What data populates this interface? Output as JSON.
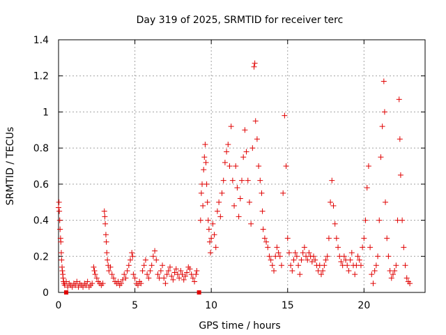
{
  "chart_data": {
    "type": "scatter",
    "title": "Day 319 of 2025, SRMTID for receiver terc",
    "xlabel": "GPS time / hours",
    "ylabel": "SRMTID / TECUs",
    "xlim": [
      0,
      24
    ],
    "ylim": [
      0,
      1.4
    ],
    "x_ticks": [
      0,
      5,
      10,
      15,
      20
    ],
    "x_tick_labels": [
      "0",
      "5",
      "10",
      "15",
      "20"
    ],
    "y_ticks": [
      0,
      0.2,
      0.4,
      0.6,
      0.8,
      1.0,
      1.2,
      1.4
    ],
    "y_tick_labels": [
      "0",
      "0.2",
      "0.4",
      "0.6",
      "0.8",
      "1",
      "1.2",
      "1.4"
    ],
    "grid": true,
    "marker": "plus",
    "color": "#e00000",
    "outage_markers_x": [
      0.5,
      9.2
    ],
    "series": [
      {
        "name": "SRMTID",
        "points": [
          [
            0.0,
            0.47
          ],
          [
            0.03,
            0.5
          ],
          [
            0.05,
            0.45
          ],
          [
            0.08,
            0.4
          ],
          [
            0.1,
            0.35
          ],
          [
            0.13,
            0.3
          ],
          [
            0.15,
            0.28
          ],
          [
            0.18,
            0.22
          ],
          [
            0.2,
            0.18
          ],
          [
            0.23,
            0.14
          ],
          [
            0.25,
            0.12
          ],
          [
            0.28,
            0.1
          ],
          [
            0.3,
            0.08
          ],
          [
            0.33,
            0.06
          ],
          [
            0.36,
            0.05
          ],
          [
            0.4,
            0.04
          ],
          [
            0.5,
            0.06
          ],
          [
            0.6,
            0.03
          ],
          [
            0.7,
            0.05
          ],
          [
            0.8,
            0.04
          ],
          [
            0.9,
            0.03
          ],
          [
            1.0,
            0.05
          ],
          [
            1.1,
            0.04
          ],
          [
            1.2,
            0.06
          ],
          [
            1.3,
            0.03
          ],
          [
            1.4,
            0.05
          ],
          [
            1.5,
            0.04
          ],
          [
            1.6,
            0.03
          ],
          [
            1.7,
            0.05
          ],
          [
            1.8,
            0.04
          ],
          [
            1.9,
            0.06
          ],
          [
            2.0,
            0.03
          ],
          [
            2.1,
            0.04
          ],
          [
            2.2,
            0.05
          ],
          [
            2.3,
            0.14
          ],
          [
            2.35,
            0.12
          ],
          [
            2.4,
            0.1
          ],
          [
            2.5,
            0.08
          ],
          [
            2.6,
            0.06
          ],
          [
            2.7,
            0.05
          ],
          [
            2.8,
            0.04
          ],
          [
            2.9,
            0.05
          ],
          [
            3.0,
            0.45
          ],
          [
            3.03,
            0.42
          ],
          [
            3.06,
            0.38
          ],
          [
            3.1,
            0.32
          ],
          [
            3.13,
            0.28
          ],
          [
            3.16,
            0.22
          ],
          [
            3.2,
            0.18
          ],
          [
            3.25,
            0.15
          ],
          [
            3.3,
            0.12
          ],
          [
            3.4,
            0.14
          ],
          [
            3.5,
            0.1
          ],
          [
            3.6,
            0.08
          ],
          [
            3.7,
            0.06
          ],
          [
            3.8,
            0.05
          ],
          [
            3.9,
            0.06
          ],
          [
            4.0,
            0.04
          ],
          [
            4.1,
            0.05
          ],
          [
            4.2,
            0.07
          ],
          [
            4.3,
            0.1
          ],
          [
            4.4,
            0.08
          ],
          [
            4.5,
            0.12
          ],
          [
            4.6,
            0.15
          ],
          [
            4.7,
            0.18
          ],
          [
            4.8,
            0.22
          ],
          [
            4.85,
            0.2
          ],
          [
            4.9,
            0.1
          ],
          [
            5.0,
            0.08
          ],
          [
            5.1,
            0.05
          ],
          [
            5.2,
            0.04
          ],
          [
            5.3,
            0.06
          ],
          [
            5.4,
            0.05
          ],
          [
            5.5,
            0.12
          ],
          [
            5.6,
            0.15
          ],
          [
            5.7,
            0.18
          ],
          [
            5.8,
            0.1
          ],
          [
            5.9,
            0.08
          ],
          [
            6.0,
            0.12
          ],
          [
            6.1,
            0.15
          ],
          [
            6.2,
            0.2
          ],
          [
            6.3,
            0.23
          ],
          [
            6.4,
            0.18
          ],
          [
            6.5,
            0.1
          ],
          [
            6.6,
            0.08
          ],
          [
            6.7,
            0.12
          ],
          [
            6.8,
            0.15
          ],
          [
            6.9,
            0.08
          ],
          [
            7.0,
            0.05
          ],
          [
            7.1,
            0.1
          ],
          [
            7.2,
            0.12
          ],
          [
            7.3,
            0.14
          ],
          [
            7.4,
            0.09
          ],
          [
            7.5,
            0.07
          ],
          [
            7.6,
            0.11
          ],
          [
            7.7,
            0.13
          ],
          [
            7.8,
            0.1
          ],
          [
            7.9,
            0.08
          ],
          [
            8.0,
            0.12
          ],
          [
            8.1,
            0.1
          ],
          [
            8.2,
            0.07
          ],
          [
            8.3,
            0.09
          ],
          [
            8.4,
            0.11
          ],
          [
            8.5,
            0.14
          ],
          [
            8.6,
            0.13
          ],
          [
            8.7,
            0.1
          ],
          [
            8.8,
            0.08
          ],
          [
            8.9,
            0.06
          ],
          [
            9.0,
            0.1
          ],
          [
            9.05,
            0.12
          ],
          [
            9.3,
            0.4
          ],
          [
            9.35,
            0.55
          ],
          [
            9.4,
            0.6
          ],
          [
            9.45,
            0.48
          ],
          [
            9.5,
            0.68
          ],
          [
            9.55,
            0.75
          ],
          [
            9.6,
            0.82
          ],
          [
            9.65,
            0.72
          ],
          [
            9.7,
            0.6
          ],
          [
            9.75,
            0.5
          ],
          [
            9.8,
            0.4
          ],
          [
            9.85,
            0.35
          ],
          [
            9.9,
            0.28
          ],
          [
            9.95,
            0.22
          ],
          [
            10.0,
            0.3
          ],
          [
            10.1,
            0.38
          ],
          [
            10.2,
            0.32
          ],
          [
            10.3,
            0.25
          ],
          [
            10.4,
            0.45
          ],
          [
            10.5,
            0.5
          ],
          [
            10.6,
            0.42
          ],
          [
            10.7,
            0.55
          ],
          [
            10.8,
            0.62
          ],
          [
            10.9,
            0.72
          ],
          [
            11.0,
            0.78
          ],
          [
            11.1,
            0.82
          ],
          [
            11.2,
            0.7
          ],
          [
            11.3,
            0.92
          ],
          [
            11.4,
            0.62
          ],
          [
            11.5,
            0.48
          ],
          [
            11.6,
            0.7
          ],
          [
            11.7,
            0.58
          ],
          [
            11.8,
            0.42
          ],
          [
            11.9,
            0.52
          ],
          [
            12.0,
            0.62
          ],
          [
            12.1,
            0.75
          ],
          [
            12.2,
            0.9
          ],
          [
            12.3,
            0.78
          ],
          [
            12.4,
            0.62
          ],
          [
            12.5,
            0.5
          ],
          [
            12.6,
            0.38
          ],
          [
            12.7,
            0.8
          ],
          [
            12.8,
            1.25
          ],
          [
            12.85,
            1.27
          ],
          [
            12.9,
            0.95
          ],
          [
            13.0,
            0.85
          ],
          [
            13.1,
            0.7
          ],
          [
            13.2,
            0.62
          ],
          [
            13.3,
            0.55
          ],
          [
            13.35,
            0.45
          ],
          [
            13.4,
            0.35
          ],
          [
            13.5,
            0.3
          ],
          [
            13.6,
            0.28
          ],
          [
            13.7,
            0.25
          ],
          [
            13.8,
            0.2
          ],
          [
            13.9,
            0.18
          ],
          [
            14.0,
            0.15
          ],
          [
            14.1,
            0.12
          ],
          [
            14.2,
            0.2
          ],
          [
            14.3,
            0.25
          ],
          [
            14.4,
            0.22
          ],
          [
            14.5,
            0.2
          ],
          [
            14.6,
            0.15
          ],
          [
            14.7,
            0.55
          ],
          [
            14.8,
            0.98
          ],
          [
            14.9,
            0.7
          ],
          [
            15.0,
            0.3
          ],
          [
            15.1,
            0.22
          ],
          [
            15.2,
            0.15
          ],
          [
            15.3,
            0.12
          ],
          [
            15.4,
            0.18
          ],
          [
            15.5,
            0.22
          ],
          [
            15.6,
            0.2
          ],
          [
            15.7,
            0.15
          ],
          [
            15.8,
            0.1
          ],
          [
            15.9,
            0.18
          ],
          [
            16.0,
            0.22
          ],
          [
            16.1,
            0.25
          ],
          [
            16.2,
            0.2
          ],
          [
            16.3,
            0.18
          ],
          [
            16.4,
            0.22
          ],
          [
            16.5,
            0.2
          ],
          [
            16.6,
            0.17
          ],
          [
            16.7,
            0.2
          ],
          [
            16.8,
            0.18
          ],
          [
            16.9,
            0.15
          ],
          [
            17.0,
            0.12
          ],
          [
            17.1,
            0.15
          ],
          [
            17.2,
            0.1
          ],
          [
            17.3,
            0.12
          ],
          [
            17.4,
            0.15
          ],
          [
            17.5,
            0.18
          ],
          [
            17.6,
            0.2
          ],
          [
            17.7,
            0.3
          ],
          [
            17.8,
            0.5
          ],
          [
            17.9,
            0.62
          ],
          [
            18.0,
            0.48
          ],
          [
            18.1,
            0.38
          ],
          [
            18.2,
            0.3
          ],
          [
            18.3,
            0.25
          ],
          [
            18.4,
            0.2
          ],
          [
            18.5,
            0.17
          ],
          [
            18.6,
            0.15
          ],
          [
            18.7,
            0.2
          ],
          [
            18.8,
            0.18
          ],
          [
            18.9,
            0.15
          ],
          [
            19.0,
            0.12
          ],
          [
            19.1,
            0.18
          ],
          [
            19.2,
            0.22
          ],
          [
            19.3,
            0.15
          ],
          [
            19.4,
            0.1
          ],
          [
            19.5,
            0.15
          ],
          [
            19.6,
            0.2
          ],
          [
            19.7,
            0.18
          ],
          [
            19.8,
            0.15
          ],
          [
            19.9,
            0.25
          ],
          [
            20.0,
            0.3
          ],
          [
            20.1,
            0.4
          ],
          [
            20.2,
            0.58
          ],
          [
            20.3,
            0.7
          ],
          [
            20.4,
            0.25
          ],
          [
            20.5,
            0.1
          ],
          [
            20.6,
            0.05
          ],
          [
            20.7,
            0.12
          ],
          [
            20.8,
            0.15
          ],
          [
            20.9,
            0.2
          ],
          [
            21.0,
            0.4
          ],
          [
            21.1,
            0.75
          ],
          [
            21.2,
            0.92
          ],
          [
            21.3,
            1.17
          ],
          [
            21.35,
            1.0
          ],
          [
            21.4,
            0.5
          ],
          [
            21.5,
            0.3
          ],
          [
            21.6,
            0.2
          ],
          [
            21.7,
            0.12
          ],
          [
            21.8,
            0.08
          ],
          [
            21.9,
            0.1
          ],
          [
            22.0,
            0.12
          ],
          [
            22.1,
            0.15
          ],
          [
            22.2,
            0.4
          ],
          [
            22.3,
            1.07
          ],
          [
            22.35,
            0.85
          ],
          [
            22.4,
            0.65
          ],
          [
            22.5,
            0.4
          ],
          [
            22.6,
            0.25
          ],
          [
            22.7,
            0.15
          ],
          [
            22.8,
            0.08
          ],
          [
            22.9,
            0.06
          ],
          [
            23.0,
            0.05
          ]
        ]
      }
    ]
  }
}
